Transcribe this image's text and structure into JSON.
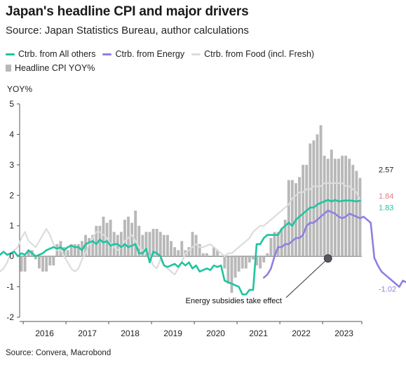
{
  "chart_data": {
    "type": "line",
    "title": "Japan's headline CPI and major drivers",
    "subtitle": "Source: Japan Statistics Bureau, author calculations",
    "ylabel": "YOY%",
    "ylim": [
      -2,
      5
    ],
    "yticks": [
      "5",
      "4",
      "3",
      "2",
      "1",
      "0",
      "-1",
      "-2"
    ],
    "xlim": [
      "2015-12",
      "2023-12"
    ],
    "xtick_years": [
      "2016",
      "2017",
      "2018",
      "2019",
      "2020",
      "2021",
      "2022",
      "2023"
    ],
    "legend_placement": "top",
    "source_note": "Source: Convera, Macrobond",
    "annotation": {
      "text": "Energy subsidies take effect",
      "point": {
        "x": "2023-02",
        "y": -0.07
      }
    },
    "colors": {
      "others": "#1fc4a0",
      "energy": "#8f80e0",
      "food": "#dcdcdc",
      "cpi": "#b8b8b8",
      "energy_label": "#e08080"
    },
    "series": [
      {
        "key": "others",
        "name": "Ctrb. from All others",
        "end_label": "1.83",
        "values": [
          0.05,
          -0.1,
          0.1,
          -0.05,
          -0.2,
          -0.1,
          -0.35,
          -0.15,
          -0.2,
          -0.1,
          -0.2,
          -0.05,
          -0.1,
          0.0,
          0.1,
          0.05,
          0.15,
          0.05,
          0.1,
          0.15,
          0.0,
          0.1,
          0.05,
          0.2,
          0.1,
          0.0,
          0.05,
          0.1,
          0.2,
          0.25,
          0.3,
          0.25,
          0.3,
          0.2,
          0.3,
          0.35,
          0.3,
          0.3,
          0.2,
          0.4,
          0.45,
          0.5,
          0.4,
          0.55,
          0.45,
          0.5,
          0.35,
          0.4,
          0.4,
          0.3,
          0.4,
          0.3,
          0.35,
          0.4,
          0.1,
          0.1,
          0.25,
          -0.2,
          0.15,
          0.1,
          0.0,
          -0.3,
          -0.35,
          -0.3,
          -0.25,
          -0.35,
          -0.2,
          -0.3,
          -0.2,
          -0.4,
          -0.3,
          -0.5,
          -0.45,
          -0.4,
          -0.45,
          -0.3,
          -0.35,
          -0.3,
          -0.8,
          -0.85,
          -0.9,
          -0.95,
          -1.0,
          -1.25,
          -1.25,
          -1.1,
          -1.1,
          0.4,
          0.4,
          0.6,
          0.7,
          0.7,
          0.7,
          0.7,
          0.9,
          1.0,
          1.1,
          1.0,
          1.2,
          1.3,
          1.4,
          1.5,
          1.6,
          1.6,
          1.7,
          1.75,
          1.8,
          1.85,
          1.8,
          1.85,
          1.8,
          1.82,
          1.83,
          1.83,
          1.82,
          1.8,
          1.83
        ]
      },
      {
        "key": "energy",
        "name": "Ctrb. from Energy",
        "end_label": "-1.02",
        "start_index": 68,
        "values": [
          -0.7,
          -0.6,
          -0.4,
          0.0,
          0.3,
          0.3,
          0.4,
          0.4,
          0.5,
          0.6,
          0.6,
          0.7,
          1.0,
          1.1,
          1.1,
          1.2,
          1.3,
          1.4,
          1.5,
          1.45,
          1.4,
          1.3,
          1.25,
          1.3,
          1.4,
          1.35,
          1.3,
          1.25,
          1.3,
          1.2,
          1.1,
          -0.05,
          -0.3,
          -0.5,
          -0.6,
          -0.7,
          -0.8,
          -0.9,
          -1.0,
          -0.8,
          -0.85,
          -1.02
        ]
      },
      {
        "key": "food",
        "name": "Ctrb. from Food (incl. Fresh)",
        "end_label": "1.84",
        "values": [
          -0.1,
          0.2,
          0.6,
          1.0,
          0.8,
          0.6,
          0.2,
          0.1,
          0.0,
          0.2,
          0.1,
          0.3,
          0.2,
          -0.1,
          -0.4,
          -0.5,
          -0.4,
          -0.2,
          0.1,
          0.2,
          0.3,
          0.6,
          0.8,
          0.5,
          0.4,
          0.3,
          0.5,
          0.7,
          0.9,
          0.7,
          0.4,
          0.2,
          0.2,
          0.0,
          -0.2,
          -0.4,
          -0.5,
          -0.4,
          -0.1,
          0.1,
          0.4,
          0.6,
          0.8,
          0.8,
          0.7,
          0.6,
          0.4,
          0.3,
          0.2,
          0.3,
          0.5,
          0.6,
          0.7,
          0.5,
          0.3,
          0.2,
          0.1,
          0.0,
          -0.3,
          -0.4,
          -0.1,
          -0.3,
          -0.4,
          -0.5,
          -0.6,
          -0.4,
          -0.2,
          0.1,
          0.2,
          0.3,
          0.4,
          0.3,
          0.3,
          0.35,
          0.4,
          0.3,
          0.2,
          0.1,
          0.0,
          0.1,
          0.1,
          0.2,
          0.3,
          0.4,
          0.5,
          0.6,
          0.8,
          0.9,
          1.0,
          1.0,
          1.1,
          1.2,
          1.3,
          1.4,
          1.5,
          1.6,
          1.7,
          1.9,
          2.0,
          2.1,
          2.1,
          2.2,
          2.2,
          2.3,
          2.3,
          2.3,
          2.4,
          2.4,
          2.4,
          2.4,
          2.4,
          2.4,
          2.3,
          2.3,
          2.2,
          2.1,
          1.84
        ]
      },
      {
        "key": "cpi",
        "name": "Headline CPI YOY%",
        "type": "bar",
        "end_label": "2.57",
        "values": [
          -0.5,
          -0.5,
          0.2,
          0.2,
          -0.1,
          -0.4,
          -0.5,
          -0.5,
          -0.3,
          -0.3,
          0.4,
          0.5,
          0.3,
          0.2,
          0.4,
          0.4,
          0.4,
          0.5,
          0.7,
          0.6,
          0.7,
          1.0,
          1.0,
          1.3,
          1.1,
          1.2,
          0.8,
          0.7,
          0.8,
          1.2,
          1.3,
          1.1,
          1.5,
          1.0,
          0.7,
          0.8,
          0.8,
          0.9,
          0.9,
          0.8,
          0.7,
          0.7,
          0.5,
          0.3,
          0.2,
          0.5,
          0.2,
          0.3,
          0.8,
          0.7,
          0.4,
          0.1,
          0.1,
          0.0,
          0.3,
          0.2,
          0.0,
          -0.4,
          -0.9,
          -1.2,
          -0.7,
          -0.5,
          -0.4,
          -0.4,
          -0.2,
          -0.1,
          -0.3,
          -0.4,
          -0.2,
          0.1,
          0.6,
          0.8,
          0.8,
          0.9,
          1.2,
          2.5,
          2.5,
          2.4,
          2.6,
          3.0,
          3.0,
          3.7,
          3.8,
          4.0,
          4.3,
          3.3,
          3.2,
          3.5,
          3.2,
          3.2,
          3.3,
          3.3,
          3.2,
          3.0,
          2.8,
          2.57
        ]
      }
    ]
  }
}
